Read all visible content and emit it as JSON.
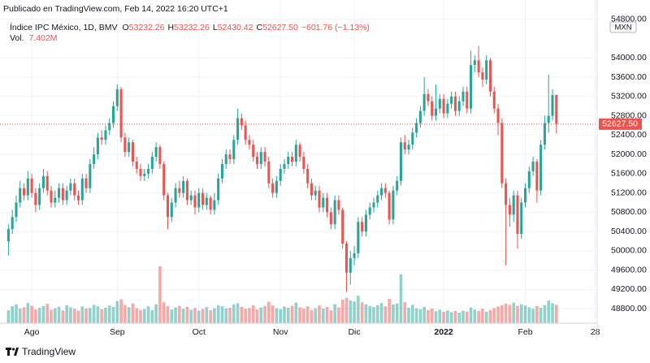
{
  "chart_data": {
    "type": "candlestick",
    "published": "Publicado en TradingView.com, Feb 14, 2022 16:20 UTC+1",
    "title": "Índice IPC México, 1D, BMV",
    "ohlc": [
      {
        "key": "O",
        "value": "53232.26"
      },
      {
        "key": "H",
        "value": "53232.26"
      },
      {
        "key": "L",
        "value": "52430.42"
      },
      {
        "key": "C",
        "value": "52627.50"
      }
    ],
    "change": "−601.76 (−1.13%)",
    "volume_key": "Vol.",
    "volume_value_label": "7.402M",
    "currency": "MXN",
    "last_price_label": "52627.50",
    "brand": "TradingView",
    "up_color": "#26a69a",
    "down_color": "#ef5350",
    "grid": true,
    "xlim": [
      -0.5,
      151.5
    ],
    "xticks": [
      {
        "value": 6,
        "label": "Ago"
      },
      {
        "value": 28,
        "label": "Sep"
      },
      {
        "value": 49,
        "label": "Oct"
      },
      {
        "value": 70,
        "label": "Nov"
      },
      {
        "value": 89,
        "label": "Dic"
      },
      {
        "value": 112,
        "label": "2022"
      },
      {
        "value": 133,
        "label": "Feb"
      },
      {
        "value": 151,
        "label": "28"
      }
    ],
    "ylim": [
      48500,
      55200
    ],
    "yticks": [
      {
        "value": 48800,
        "label": "48800.00"
      },
      {
        "value": 49200,
        "label": "49200.00"
      },
      {
        "value": 49600,
        "label": "49600.00"
      },
      {
        "value": 50000,
        "label": "50000.00"
      },
      {
        "value": 50400,
        "label": "50400.00"
      },
      {
        "value": 50800,
        "label": "50800.00"
      },
      {
        "value": 51200,
        "label": "51200.00"
      },
      {
        "value": 51600,
        "label": "51600.00"
      },
      {
        "value": 52000,
        "label": "52000.00"
      },
      {
        "value": 52400,
        "label": "52400.00"
      },
      {
        "value": 52800,
        "label": "52800.00"
      },
      {
        "value": 53200,
        "label": "53200.00"
      },
      {
        "value": 53600,
        "label": "53600.00"
      },
      {
        "value": 54000,
        "label": "54000.00"
      },
      {
        "value": 54800,
        "label": "54800.00"
      }
    ],
    "open": [
      50200,
      50450,
      50700,
      51000,
      51300,
      51150,
      51500,
      51200,
      50950,
      51300,
      51550,
      51250,
      51000,
      51100,
      51300,
      51050,
      51250,
      51400,
      51150,
      51050,
      51500,
      51300,
      51800,
      52000,
      52350,
      52300,
      52500,
      52650,
      53000,
      53350,
      52350,
      52050,
      52250,
      51850,
      51700,
      51550,
      51600,
      51700,
      51950,
      52150,
      51800,
      51150,
      50700,
      51000,
      51300,
      51200,
      51450,
      51050,
      51150,
      50900,
      51200,
      50950,
      51100,
      50850,
      51050,
      51500,
      51800,
      52000,
      51900,
      52300,
      52750,
      52600,
      52300,
      52200,
      51950,
      51800,
      52050,
      51850,
      51400,
      51200,
      51450,
      51700,
      51800,
      51950,
      51850,
      52200,
      51950,
      51700,
      51400,
      51150,
      51250,
      50900,
      51100,
      50800,
      50550,
      51050,
      50850,
      50150,
      49550,
      49850,
      49950,
      50600,
      50400,
      50750,
      50900,
      51000,
      51150,
      51300,
      51200,
      50650,
      51250,
      51450,
      52250,
      52100,
      52200,
      52450,
      52650,
      52900,
      53250,
      53100,
      52800,
      52950,
      53150,
      52850,
      53050,
      53200,
      52900,
      53100,
      53300,
      52950,
      53850,
      53950,
      53700,
      53550,
      53950,
      53300,
      52950,
      52650,
      51400,
      50950,
      50750,
      51150,
      50350,
      51000,
      51300,
      51650,
      51850,
      51250,
      52200,
      52650,
      52800,
      53232.26
    ],
    "high": [
      50550,
      50850,
      51150,
      51450,
      51400,
      51650,
      51600,
      51300,
      51400,
      51700,
      51650,
      51350,
      51250,
      51400,
      51400,
      51350,
      51500,
      51500,
      51250,
      51600,
      51600,
      51900,
      52150,
      52450,
      52500,
      52600,
      52750,
      53100,
      53450,
      53400,
      52450,
      52350,
      52300,
      51950,
      51800,
      51700,
      51800,
      52050,
      52250,
      52200,
      51850,
      51200,
      51100,
      51400,
      51450,
      51550,
      51500,
      51250,
      51250,
      51300,
      51300,
      51200,
      51150,
      51200,
      51600,
      51900,
      52100,
      52100,
      52400,
      52950,
      52850,
      52700,
      52400,
      52300,
      52050,
      52150,
      52150,
      51950,
      51500,
      51550,
      51800,
      51900,
      52050,
      52050,
      52300,
      52250,
      52050,
      51800,
      51500,
      51350,
      51350,
      51200,
      51200,
      50900,
      51150,
      51150,
      50900,
      50200,
      50000,
      50100,
      50700,
      50700,
      50850,
      51000,
      51100,
      51250,
      51400,
      51400,
      51250,
      51350,
      51550,
      52350,
      52400,
      52300,
      52550,
      52750,
      53000,
      53600,
      53350,
      53200,
      53450,
      53250,
      53250,
      53150,
      53300,
      53300,
      53200,
      53400,
      53400,
      54150,
      54050,
      54250,
      53800,
      54050,
      54000,
      53400,
      53050,
      52750,
      51500,
      51100,
      51250,
      51250,
      51100,
      51400,
      51750,
      51950,
      51900,
      52300,
      52800,
      53650,
      53350,
      53232.26
    ],
    "low": [
      49900,
      50350,
      50600,
      50900,
      51050,
      51050,
      51100,
      50800,
      50850,
      51200,
      51150,
      50900,
      50900,
      51000,
      50950,
      50950,
      51150,
      51050,
      50950,
      50950,
      51200,
      51200,
      51700,
      51900,
      52200,
      52200,
      52400,
      52550,
      52900,
      52250,
      51950,
      51950,
      51750,
      51600,
      51450,
      51450,
      51500,
      51600,
      51850,
      51700,
      51050,
      50450,
      50600,
      50900,
      51100,
      51100,
      50950,
      50950,
      50750,
      50800,
      50850,
      50850,
      50750,
      50750,
      50950,
      51400,
      51700,
      51800,
      51800,
      52200,
      52500,
      52200,
      52100,
      51850,
      51700,
      51700,
      51750,
      51300,
      51100,
      51100,
      51350,
      51600,
      51700,
      51750,
      51750,
      51850,
      51600,
      51300,
      51050,
      51050,
      50800,
      50800,
      50700,
      50450,
      50450,
      50750,
      50050,
      49150,
      49300,
      49700,
      49850,
      50300,
      50300,
      50650,
      50800,
      50900,
      51050,
      51100,
      50550,
      50550,
      51150,
      51350,
      52000,
      52000,
      52100,
      52350,
      52550,
      52800,
      53000,
      52700,
      52700,
      52850,
      52750,
      52750,
      52950,
      52800,
      52800,
      53000,
      52850,
      52850,
      53700,
      53600,
      53400,
      53450,
      53200,
      52850,
      52400,
      51300,
      49700,
      50500,
      50600,
      50050,
      50250,
      50900,
      51200,
      51550,
      51000,
      51150,
      52100,
      52450,
      52700,
      52430.42
    ],
    "close": [
      50450,
      50700,
      51000,
      51300,
      51150,
      51500,
      51200,
      50950,
      51300,
      51550,
      51250,
      51000,
      51100,
      51300,
      51050,
      51250,
      51400,
      51150,
      51050,
      51500,
      51300,
      51800,
      52000,
      52350,
      52300,
      52500,
      52650,
      53000,
      53350,
      52350,
      52050,
      52250,
      51850,
      51700,
      51550,
      51600,
      51700,
      51950,
      52150,
      51800,
      51150,
      50700,
      51000,
      51300,
      51200,
      51450,
      51050,
      51150,
      50900,
      51200,
      50950,
      51100,
      50850,
      51050,
      51500,
      51800,
      52000,
      51900,
      52300,
      52750,
      52600,
      52300,
      52200,
      51950,
      51800,
      52050,
      51850,
      51400,
      51200,
      51450,
      51700,
      51800,
      51950,
      51850,
      52200,
      51950,
      51700,
      51400,
      51150,
      51250,
      50900,
      51100,
      50800,
      50550,
      51050,
      50850,
      50150,
      49550,
      49850,
      49950,
      50600,
      50400,
      50750,
      50900,
      51000,
      51150,
      51300,
      51200,
      50650,
      51250,
      51450,
      52250,
      52100,
      52200,
      52450,
      52650,
      52900,
      53250,
      53100,
      52800,
      52950,
      53150,
      52850,
      53050,
      53200,
      52900,
      53100,
      53300,
      52950,
      53850,
      53950,
      53700,
      53550,
      53950,
      53300,
      52950,
      52650,
      51400,
      50950,
      50750,
      51150,
      50350,
      51000,
      51300,
      51650,
      51850,
      51250,
      52200,
      52650,
      52800,
      53230,
      52627.5
    ],
    "volume": [
      5200000,
      6800000,
      7500000,
      5900000,
      6400000,
      8100000,
      7000000,
      5500000,
      6200000,
      6900000,
      7800000,
      5400000,
      6000000,
      6600000,
      5100000,
      7200000,
      6300000,
      5800000,
      5000000,
      6700000,
      5900000,
      6100000,
      7400000,
      6800000,
      5600000,
      6200000,
      7100000,
      6500000,
      8900000,
      9600000,
      7300000,
      6400000,
      7900000,
      6000000,
      5300000,
      5700000,
      6800000,
      5200000,
      7600000,
      22800000,
      8400000,
      6900000,
      5500000,
      6300000,
      7000000,
      5800000,
      6600000,
      5400000,
      6100000,
      5000000,
      5700000,
      6400000,
      5200000,
      6000000,
      7300000,
      6800000,
      5900000,
      6200000,
      7500000,
      8000000,
      6600000,
      5800000,
      6100000,
      7200000,
      5500000,
      6300000,
      6900000,
      8600000,
      7100000,
      6000000,
      5600000,
      6700000,
      6200000,
      7000000,
      8300000,
      6400000,
      5900000,
      6800000,
      5300000,
      6000000,
      7100000,
      5800000,
      6500000,
      5200000,
      7600000,
      6300000,
      9400000,
      10200000,
      9100000,
      8700000,
      11000000,
      8400000,
      7600000,
      6900000,
      6500000,
      7200000,
      8100000,
      6800000,
      9800000,
      7500000,
      7900000,
      19600000,
      8500000,
      6200000,
      7400000,
      6000000,
      5600000,
      6500000,
      5300000,
      5900000,
      4800000,
      5400000,
      4600000,
      5100000,
      4400000,
      4900000,
      4200000,
      5000000,
      4700000,
      6300000,
      5500000,
      4900000,
      5800000,
      4600000,
      5300000,
      6100000,
      6700000,
      7200000,
      7800000,
      7400000,
      8200000,
      7000000,
      7600000,
      7100000,
      6400000,
      5800000,
      6900000,
      6200000,
      7300000,
      9100000,
      8000000,
      7402000
    ]
  }
}
